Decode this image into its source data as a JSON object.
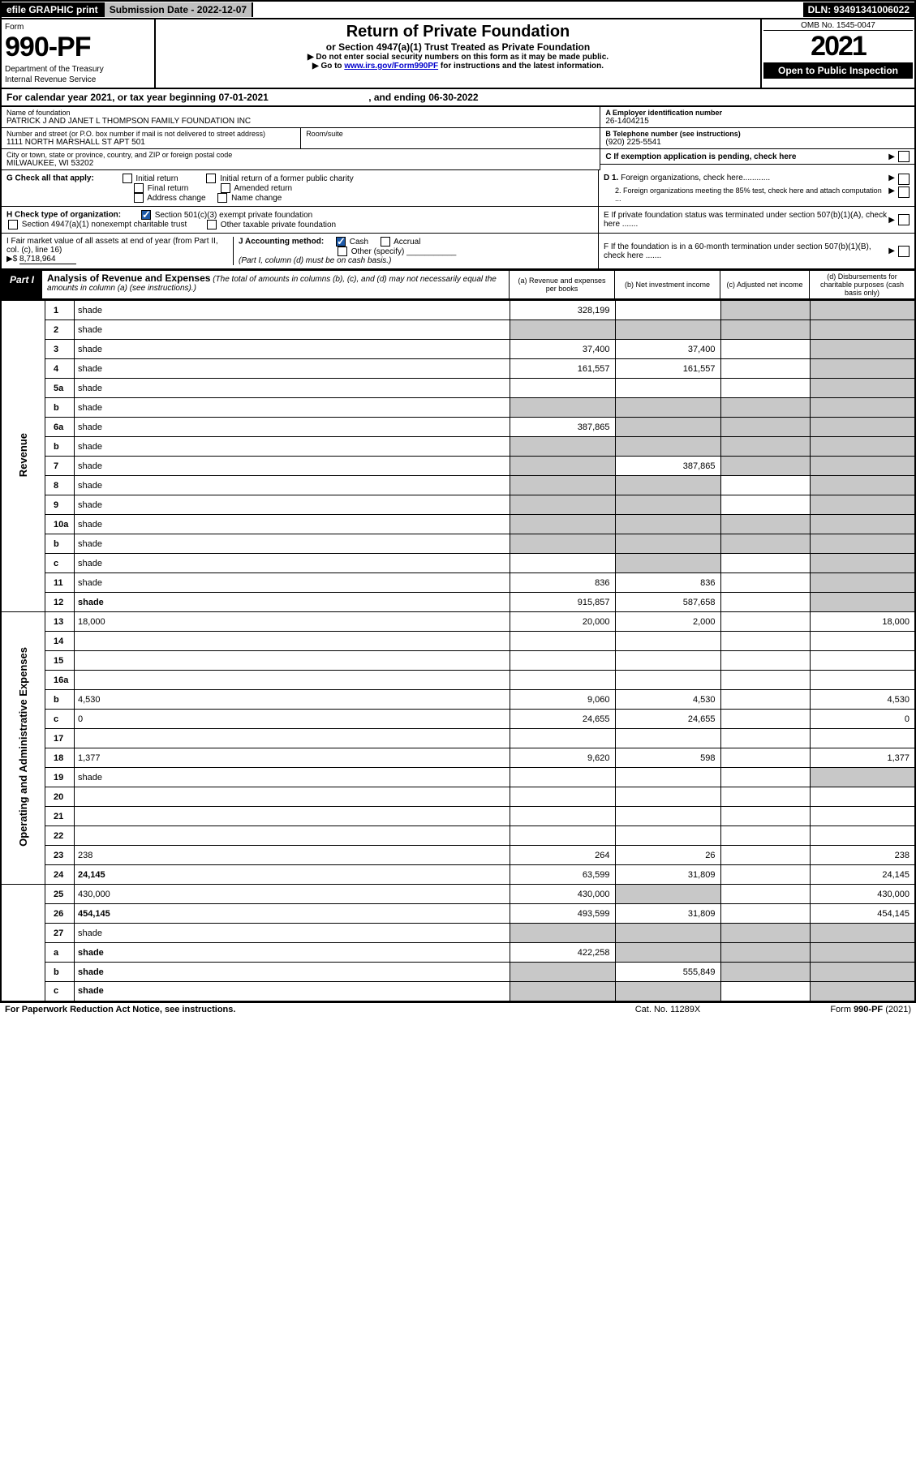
{
  "topbar": {
    "efile": "efile GRAPHIC print",
    "submission": "Submission Date - 2022-12-07",
    "dln": "DLN: 93491341006022"
  },
  "header": {
    "form_word": "Form",
    "form_number": "990-PF",
    "dept1": "Department of the Treasury",
    "dept2": "Internal Revenue Service",
    "title": "Return of Private Foundation",
    "subtitle": "or Section 4947(a)(1) Trust Treated as Private Foundation",
    "note1": "▶ Do not enter social security numbers on this form as it may be made public.",
    "note2_pre": "▶ Go to ",
    "note2_link": "www.irs.gov/Form990PF",
    "note2_post": " for instructions and the latest information.",
    "omb": "OMB No. 1545-0047",
    "year": "2021",
    "open": "Open to Public Inspection"
  },
  "calendar": {
    "pre": "For calendar year 2021, or tax year beginning ",
    "begin": "07-01-2021",
    "mid": " , and ending ",
    "end": "06-30-2022"
  },
  "info": {
    "name_lbl": "Name of foundation",
    "name_val": "PATRICK J AND JANET L THOMPSON FAMILY FOUNDATION INC",
    "addr_lbl": "Number and street (or P.O. box number if mail is not delivered to street address)",
    "addr_val": "1111 NORTH MARSHALL ST APT 501",
    "room_lbl": "Room/suite",
    "city_lbl": "City or town, state or province, country, and ZIP or foreign postal code",
    "city_val": "MILWAUKEE, WI  53202",
    "ein_lbl": "A Employer identification number",
    "ein_val": "26-1404215",
    "tel_lbl": "B Telephone number (see instructions)",
    "tel_val": "(920) 225-5541",
    "c_lbl": "C If exemption application is pending, check here",
    "d1": "D 1. Foreign organizations, check here............",
    "d2": "2. Foreign organizations meeting the 85% test, check here and attach computation ...",
    "e": "E  If private foundation status was terminated under section 507(b)(1)(A), check here .......",
    "f": "F  If the foundation is in a 60-month termination under section 507(b)(1)(B), check here ......."
  },
  "g": {
    "label": "G Check all that apply:",
    "opts": [
      "Initial return",
      "Final return",
      "Address change",
      "Initial return of a former public charity",
      "Amended return",
      "Name change"
    ]
  },
  "h": {
    "label": "H Check type of organization:",
    "o1": "Section 501(c)(3) exempt private foundation",
    "o2": "Section 4947(a)(1) nonexempt charitable trust",
    "o3": "Other taxable private foundation"
  },
  "i": {
    "label": "I Fair market value of all assets at end of year (from Part II, col. (c), line 16)",
    "arrow": "▶$",
    "val": "8,718,964"
  },
  "j": {
    "label": "J Accounting method:",
    "cash": "Cash",
    "accrual": "Accrual",
    "other": "Other (specify)",
    "note": "(Part I, column (d) must be on cash basis.)"
  },
  "part1": {
    "label": "Part I",
    "title": "Analysis of Revenue and Expenses",
    "note": "(The total of amounts in columns (b), (c), and (d) may not necessarily equal the amounts in column (a) (see instructions).)",
    "cols": {
      "a": "(a) Revenue and expenses per books",
      "b": "(b) Net investment income",
      "c": "(c) Adjusted net income",
      "d": "(d) Disbursements for charitable purposes (cash basis only)"
    }
  },
  "sections": {
    "revenue": "Revenue",
    "expenses": "Operating and Administrative Expenses"
  },
  "rows": [
    {
      "n": "1",
      "d": "shade",
      "a": "328,199",
      "b": "",
      "c": "shade"
    },
    {
      "n": "2",
      "d": "shade",
      "a": "shade",
      "b": "shade",
      "c": "shade"
    },
    {
      "n": "3",
      "d": "shade",
      "a": "37,400",
      "b": "37,400",
      "c": ""
    },
    {
      "n": "4",
      "d": "shade",
      "a": "161,557",
      "b": "161,557",
      "c": ""
    },
    {
      "n": "5a",
      "d": "shade",
      "a": "",
      "b": "",
      "c": ""
    },
    {
      "n": "b",
      "d": "shade",
      "a": "shade",
      "b": "shade",
      "c": "shade"
    },
    {
      "n": "6a",
      "d": "shade",
      "a": "387,865",
      "b": "shade",
      "c": "shade"
    },
    {
      "n": "b",
      "d": "shade",
      "a": "shade",
      "b": "shade",
      "c": "shade"
    },
    {
      "n": "7",
      "d": "shade",
      "a": "shade",
      "b": "387,865",
      "c": "shade"
    },
    {
      "n": "8",
      "d": "shade",
      "a": "shade",
      "b": "shade",
      "c": ""
    },
    {
      "n": "9",
      "d": "shade",
      "a": "shade",
      "b": "shade",
      "c": ""
    },
    {
      "n": "10a",
      "d": "shade",
      "a": "shade",
      "b": "shade",
      "c": "shade"
    },
    {
      "n": "b",
      "d": "shade",
      "a": "shade",
      "b": "shade",
      "c": "shade"
    },
    {
      "n": "c",
      "d": "shade",
      "a": "",
      "b": "shade",
      "c": ""
    },
    {
      "n": "11",
      "d": "shade",
      "a": "836",
      "b": "836",
      "c": ""
    },
    {
      "n": "12",
      "d": "shade",
      "a": "915,857",
      "b": "587,658",
      "c": "",
      "bold": true
    },
    {
      "n": "13",
      "d": "18,000",
      "a": "20,000",
      "b": "2,000",
      "c": ""
    },
    {
      "n": "14",
      "d": "",
      "a": "",
      "b": "",
      "c": ""
    },
    {
      "n": "15",
      "d": "",
      "a": "",
      "b": "",
      "c": ""
    },
    {
      "n": "16a",
      "d": "",
      "a": "",
      "b": "",
      "c": ""
    },
    {
      "n": "b",
      "d": "4,530",
      "a": "9,060",
      "b": "4,530",
      "c": ""
    },
    {
      "n": "c",
      "d": "0",
      "a": "24,655",
      "b": "24,655",
      "c": ""
    },
    {
      "n": "17",
      "d": "",
      "a": "",
      "b": "",
      "c": ""
    },
    {
      "n": "18",
      "d": "1,377",
      "a": "9,620",
      "b": "598",
      "c": ""
    },
    {
      "n": "19",
      "d": "shade",
      "a": "",
      "b": "",
      "c": ""
    },
    {
      "n": "20",
      "d": "",
      "a": "",
      "b": "",
      "c": ""
    },
    {
      "n": "21",
      "d": "",
      "a": "",
      "b": "",
      "c": ""
    },
    {
      "n": "22",
      "d": "",
      "a": "",
      "b": "",
      "c": ""
    },
    {
      "n": "23",
      "d": "238",
      "a": "264",
      "b": "26",
      "c": ""
    },
    {
      "n": "24",
      "d": "24,145",
      "a": "63,599",
      "b": "31,809",
      "c": "",
      "bold": true
    },
    {
      "n": "25",
      "d": "430,000",
      "a": "430,000",
      "b": "shade",
      "c": ""
    },
    {
      "n": "26",
      "d": "454,145",
      "a": "493,599",
      "b": "31,809",
      "c": "",
      "bold": true
    },
    {
      "n": "27",
      "d": "shade",
      "a": "shade",
      "b": "shade",
      "c": "shade"
    },
    {
      "n": "a",
      "d": "shade",
      "a": "422,258",
      "b": "shade",
      "c": "shade",
      "bold": true
    },
    {
      "n": "b",
      "d": "shade",
      "a": "shade",
      "b": "555,849",
      "c": "shade",
      "bold": true
    },
    {
      "n": "c",
      "d": "shade",
      "a": "shade",
      "b": "shade",
      "c": "",
      "bold": true
    }
  ],
  "footer": {
    "left": "For Paperwork Reduction Act Notice, see instructions.",
    "center": "Cat. No. 11289X",
    "right": "Form 990-PF (2021)"
  }
}
